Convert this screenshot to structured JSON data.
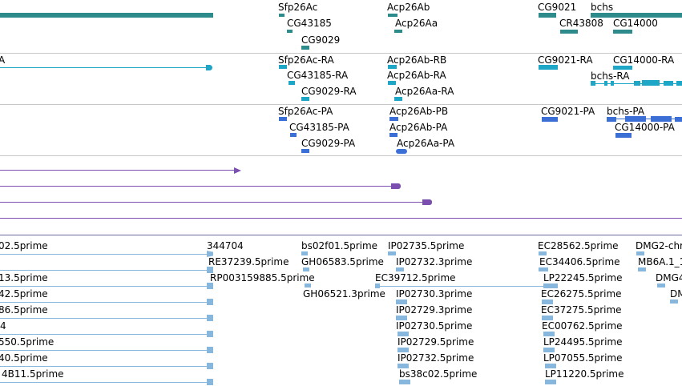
{
  "colors": {
    "gene": "#2e8b8b",
    "transcript": "#1ea6c6",
    "protein": "#3b6fd6",
    "alignment": "#7a4fb0",
    "est": "#87b7dc",
    "divider": "#c8c8c8"
  },
  "tracks": {
    "genes": {
      "labels": [
        "Sfp26Ac",
        "CG43185",
        "CG9029",
        "Acp26Ab",
        "Acp26Aa",
        "CG9021",
        "CR43808",
        "bchs",
        "CG14000"
      ]
    },
    "transcripts": {
      "labels": [
        "A",
        "Sfp26Ac-RA",
        "CG43185-RA",
        "CG9029-RA",
        "Acp26Ab-RB",
        "Acp26Ab-RA",
        "Acp26Aa-RA",
        "CG9021-RA",
        "CG14000-RA",
        "bchs-RA"
      ]
    },
    "proteins": {
      "labels": [
        "Sfp26Ac-PA",
        "CG43185-PA",
        "CG9029-PA",
        "Acp26Ab-PB",
        "Acp26Ab-PA",
        "Acp26Aa-PA",
        "CG9021-PA",
        "bchs-PA",
        "CG14000-PA"
      ]
    },
    "ests": {
      "labels": [
        "02.5prime",
        "344704",
        "bs02f01.5prime",
        "IP02735.5prime",
        "EC28562.5prime",
        "DMG2-chr",
        "RE37239.5prime",
        "GH06583.5prime",
        "IP02732.3prime",
        "EC34406.5prime",
        "MB6A.1_1",
        "13.5prime",
        "RP003159885.5prime",
        "EC39712.5prime",
        "LP22245.5prime",
        "DMG4",
        "42.5prime",
        "GH06521.3prime",
        "IP02730.3prime",
        "EC26275.5prime",
        "DM",
        "86.5prime",
        "IP02729.3prime",
        "EC37275.5prime",
        "4",
        "IP02730.5prime",
        "EC00762.5prime",
        "550.5prime",
        "IP02729.5prime",
        "LP24495.5prime",
        "40.5prime",
        "IP02732.5prime",
        "LP07055.5prime",
        "4B11.5prime",
        "bs38c02.5prime",
        "LP11220.5prime"
      ]
    }
  }
}
